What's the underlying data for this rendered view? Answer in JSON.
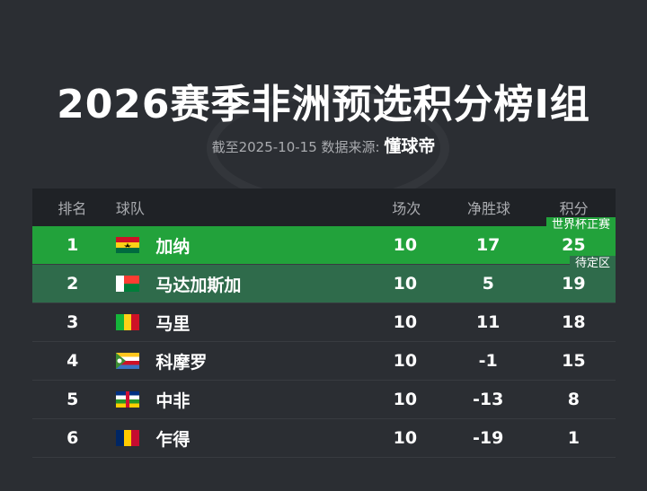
{
  "title": "2026赛季非洲预选积分榜I组",
  "subtitle": {
    "prefix": "截至2025-10-15 数据来源:",
    "source": "懂球帝"
  },
  "headers": {
    "rank": "排名",
    "team": "球队",
    "played": "场次",
    "gd": "净胜球",
    "pts": "积分"
  },
  "zones": [
    {
      "label": "世界杯正赛",
      "color": "#22a23b"
    },
    {
      "label": "待定区",
      "color": "#2f6b4b"
    }
  ],
  "rows": [
    {
      "rank": "1",
      "team": "加纳",
      "flag": "ghana-flag",
      "played": "10",
      "gd": "17",
      "pts": "25"
    },
    {
      "rank": "2",
      "team": "马达加斯加",
      "flag": "madagascar-flag",
      "played": "10",
      "gd": "5",
      "pts": "19"
    },
    {
      "rank": "3",
      "team": "马里",
      "flag": "mali-flag",
      "played": "10",
      "gd": "11",
      "pts": "18"
    },
    {
      "rank": "4",
      "team": "科摩罗",
      "flag": "comoros-flag",
      "played": "10",
      "gd": "-1",
      "pts": "15"
    },
    {
      "rank": "5",
      "team": "中非",
      "flag": "central-african-republic-flag",
      "played": "10",
      "gd": "-13",
      "pts": "8"
    },
    {
      "rank": "6",
      "team": "乍得",
      "flag": "chad-flag",
      "played": "10",
      "gd": "-19",
      "pts": "1"
    }
  ]
}
